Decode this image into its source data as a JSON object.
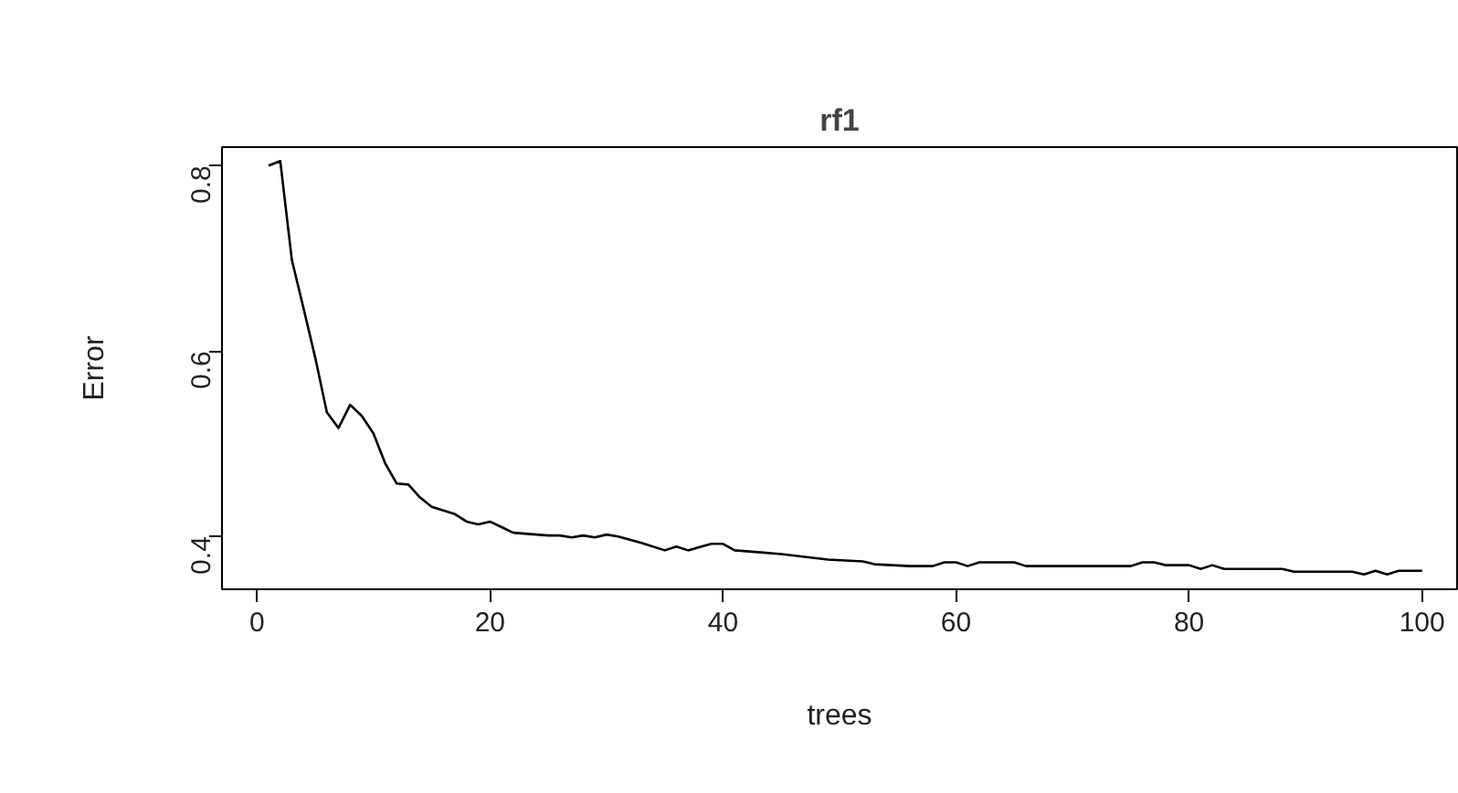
{
  "chart_data": {
    "type": "line",
    "title": "rf1",
    "xlabel": "trees",
    "ylabel": "Error",
    "x": [
      1,
      2,
      3,
      4,
      5,
      6,
      7,
      8,
      9,
      10,
      11,
      12,
      13,
      14,
      15,
      16,
      17,
      18,
      19,
      20,
      21,
      22,
      23,
      24,
      25,
      26,
      27,
      28,
      29,
      30,
      31,
      33,
      35,
      36,
      37,
      39,
      40,
      41,
      43,
      45,
      47,
      49,
      52,
      53,
      56,
      58,
      59,
      60,
      61,
      62,
      65,
      66,
      75,
      76,
      77,
      78,
      80,
      81,
      82,
      83,
      88,
      89,
      94,
      95,
      96,
      97,
      98,
      100
    ],
    "values": [
      0.8,
      0.805,
      0.698,
      0.646,
      0.593,
      0.534,
      0.517,
      0.542,
      0.53,
      0.511,
      0.479,
      0.457,
      0.456,
      0.442,
      0.432,
      0.428,
      0.424,
      0.416,
      0.413,
      0.416,
      0.41,
      0.404,
      0.403,
      0.402,
      0.401,
      0.401,
      0.399,
      0.401,
      0.399,
      0.402,
      0.4,
      0.393,
      0.385,
      0.389,
      0.385,
      0.392,
      0.392,
      0.385,
      0.383,
      0.381,
      0.378,
      0.375,
      0.373,
      0.37,
      0.368,
      0.368,
      0.372,
      0.372,
      0.368,
      0.372,
      0.372,
      0.368,
      0.368,
      0.372,
      0.372,
      0.369,
      0.369,
      0.365,
      0.369,
      0.365,
      0.365,
      0.362,
      0.362,
      0.359,
      0.363,
      0.359,
      0.363,
      0.363
    ],
    "color": "#000000",
    "xlim": [
      -3,
      103
    ],
    "ylim": [
      0.343,
      0.82
    ],
    "xticks": [
      0,
      20,
      40,
      60,
      80,
      100
    ],
    "yticks": [
      0.4,
      0.6,
      0.8
    ]
  }
}
